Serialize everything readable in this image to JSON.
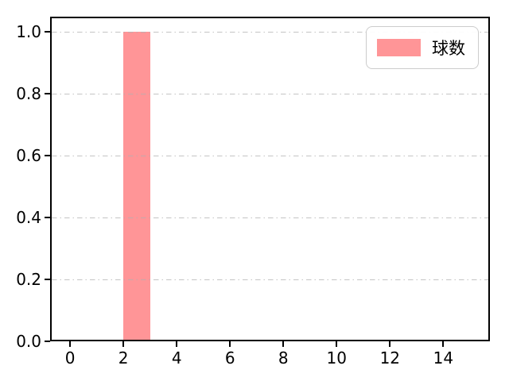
{
  "chart_data": {
    "type": "bar",
    "title": "",
    "xlabel": "",
    "ylabel": "",
    "xlim": [
      -0.75,
      15.75
    ],
    "ylim": [
      0,
      1.05
    ],
    "xticks": [
      {
        "v": 0,
        "label": "0"
      },
      {
        "v": 2,
        "label": "2"
      },
      {
        "v": 4,
        "label": "4"
      },
      {
        "v": 6,
        "label": "6"
      },
      {
        "v": 8,
        "label": "8"
      },
      {
        "v": 10,
        "label": "10"
      },
      {
        "v": 12,
        "label": "12"
      },
      {
        "v": 14,
        "label": "14"
      }
    ],
    "yticks": [
      {
        "v": 0.0,
        "label": "0.0"
      },
      {
        "v": 0.2,
        "label": "0.2"
      },
      {
        "v": 0.4,
        "label": "0.4"
      },
      {
        "v": 0.6,
        "label": "0.6"
      },
      {
        "v": 0.8,
        "label": "0.8"
      },
      {
        "v": 1.0,
        "label": "1.0"
      }
    ],
    "grid": {
      "axis": "y",
      "style": "dashdot",
      "color": "176,176,176"
    },
    "series": [
      {
        "name": "球数",
        "color": "#ff9597",
        "bars": [
          {
            "x_start": 2,
            "x_end": 3,
            "height": 1.0
          }
        ]
      }
    ],
    "legend": {
      "position": "upper-right",
      "entries": [
        {
          "label": "球数",
          "color": "#ff9597"
        }
      ]
    }
  },
  "colors": {
    "background": "#ffffff",
    "spine": "#000000",
    "tick_label": "#000000",
    "legend_border": "#cccccc"
  }
}
